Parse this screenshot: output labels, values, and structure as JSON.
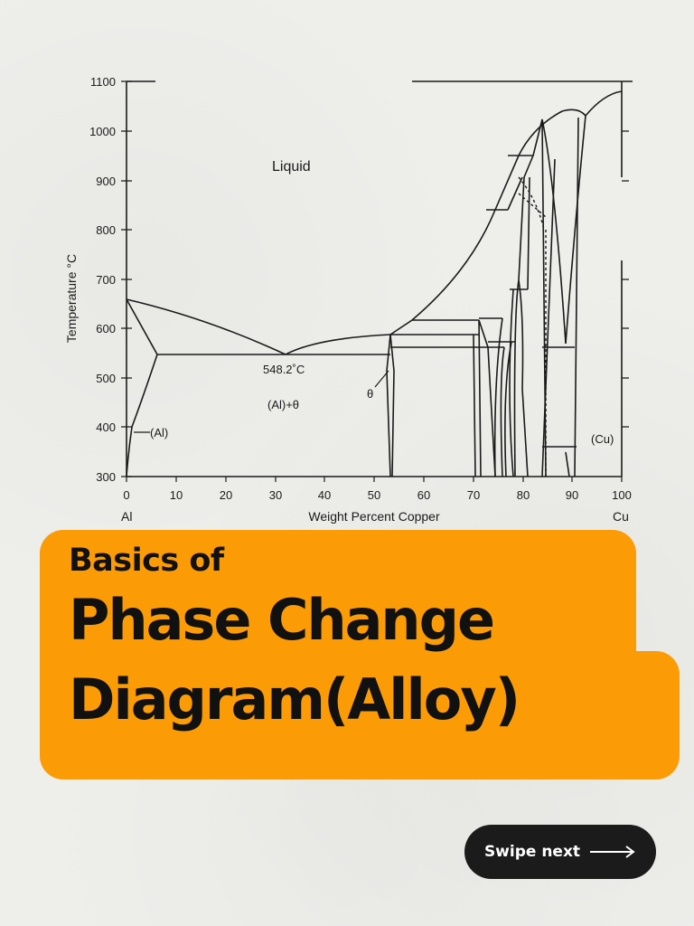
{
  "diagram": {
    "y_axis_title": "Temperature °C",
    "x_axis_title": "Weight Percent Copper",
    "x_left_element": "Al",
    "x_right_element": "Cu",
    "y_ticks": [
      "1100",
      "1000",
      "900",
      "800",
      "700",
      "600",
      "500",
      "400",
      "300"
    ],
    "x_ticks": [
      "0",
      "10",
      "20",
      "30",
      "40",
      "50",
      "60",
      "70",
      "80",
      "90",
      "100"
    ],
    "labels": {
      "liquid": "Liquid",
      "eutectic_temp": "548.2˚C",
      "al_theta": "(Al)+θ",
      "theta": "θ",
      "al": "(Al)",
      "cu": "(Cu)"
    }
  },
  "title": {
    "kicker": "Basics of",
    "line1": "Phase Change",
    "line2": "Diagram(Alloy)",
    "background_color": "#fb9c06"
  },
  "swipe": {
    "label": "Swipe next",
    "icon": "arrow-right-icon"
  }
}
